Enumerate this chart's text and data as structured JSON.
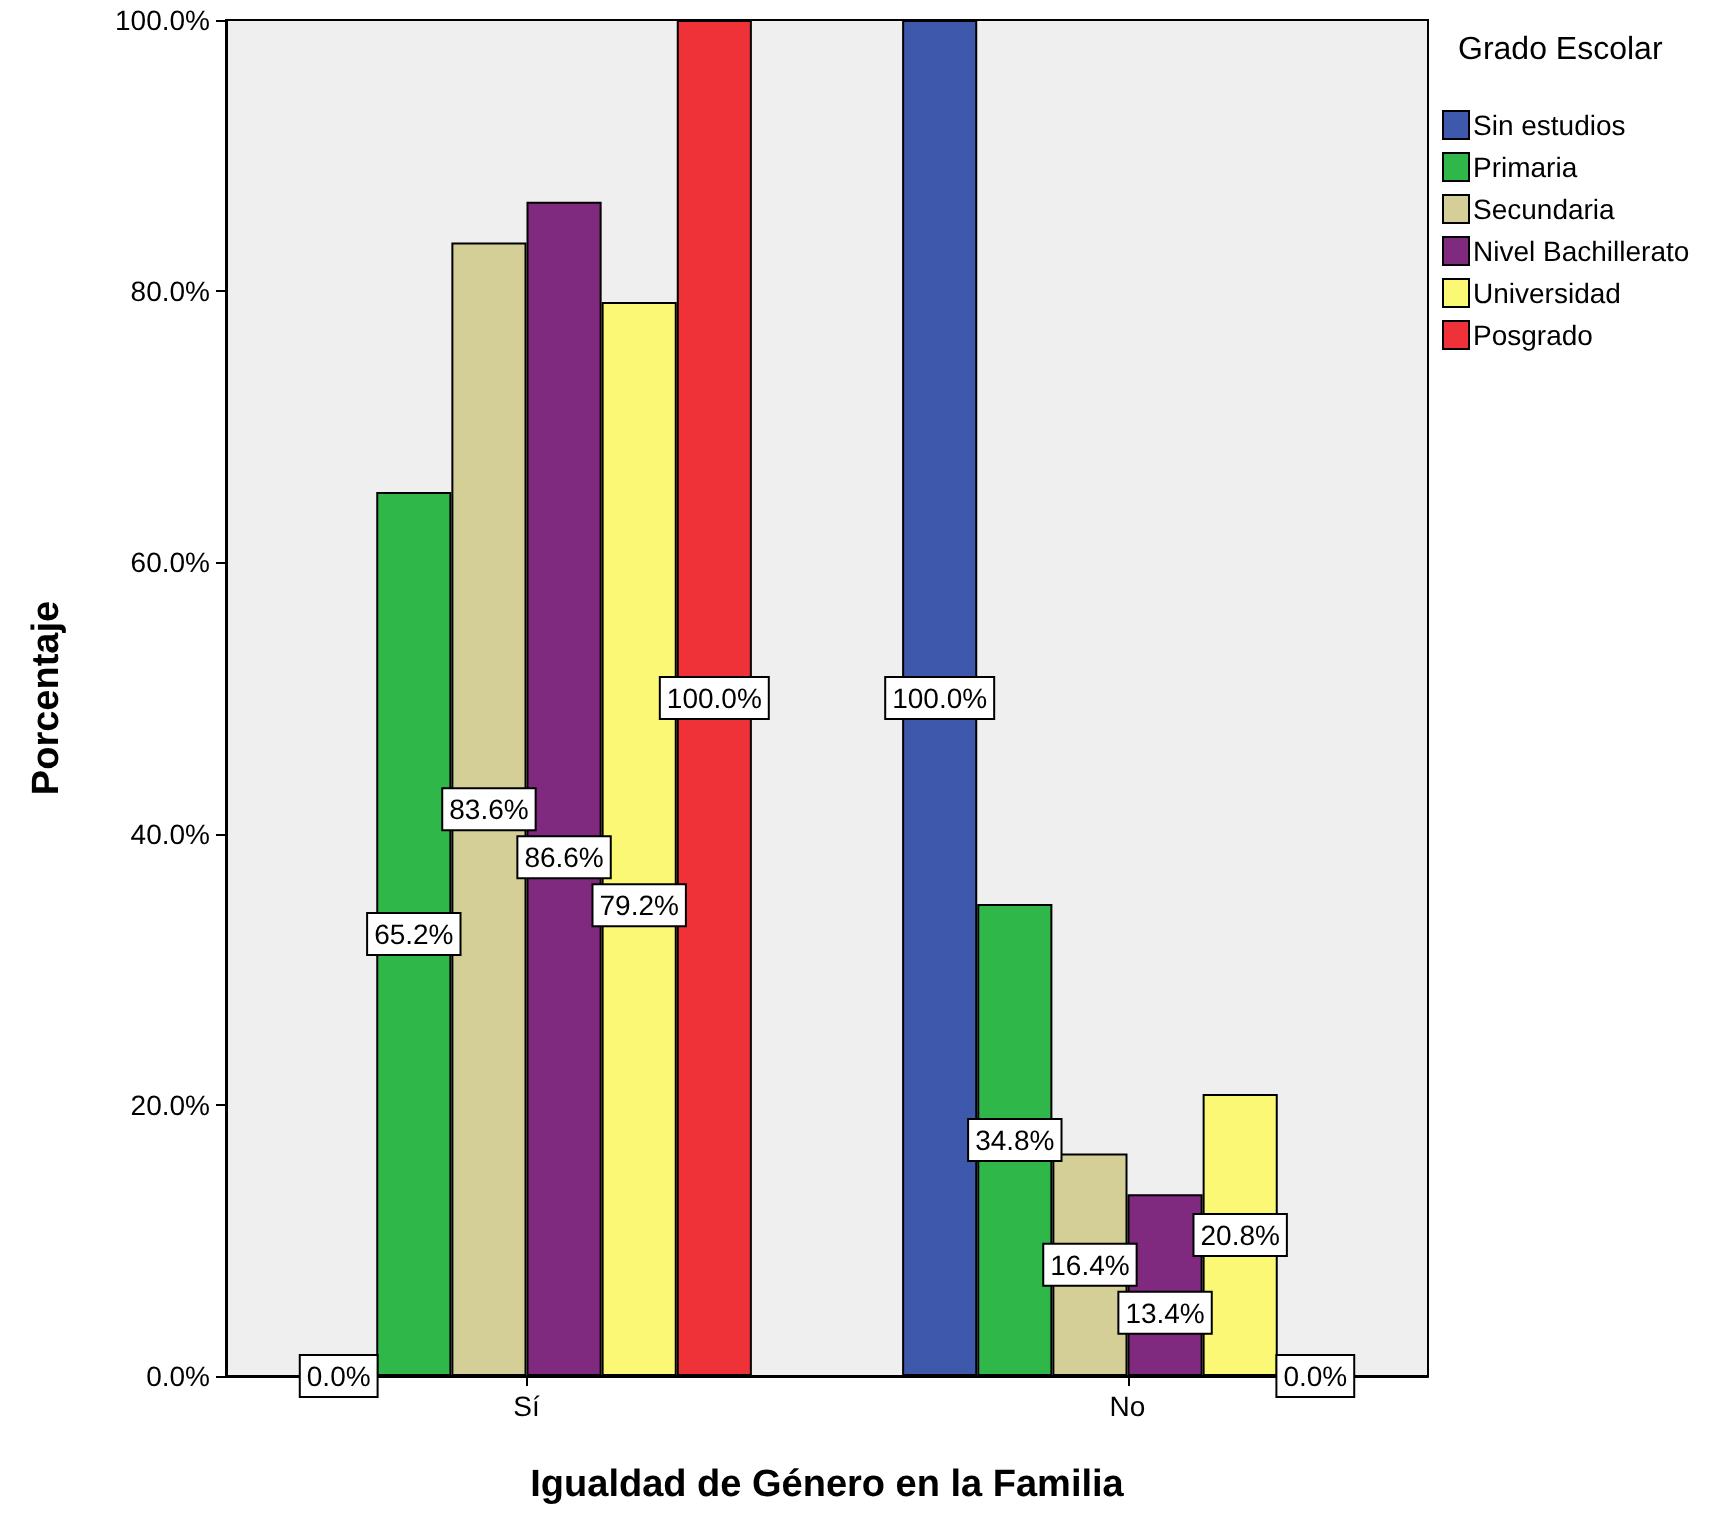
{
  "chart_data": {
    "type": "bar",
    "xlabel": "Igualdad de Género en la Familia",
    "ylabel": "Porcentaje",
    "legend_title": "Grado Escolar",
    "legend": "right",
    "categories": [
      "Sí",
      "No"
    ],
    "series": [
      {
        "name": "Sin estudios",
        "color": "#3e58ac",
        "values": [
          0.0,
          100.0
        ],
        "value_labels": [
          "0.0%",
          "100.0%"
        ]
      },
      {
        "name": "Primaria",
        "color": "#2fb74a",
        "values": [
          65.2,
          34.8
        ],
        "value_labels": [
          "65.2%",
          "34.8%"
        ]
      },
      {
        "name": "Secundaria",
        "color": "#d4cf96",
        "values": [
          83.6,
          16.4
        ],
        "value_labels": [
          "83.6%",
          "16.4%"
        ]
      },
      {
        "name": "Nivel Bachillerato",
        "color": "#7f2a7f",
        "values": [
          86.6,
          13.4
        ],
        "value_labels": [
          "86.6%",
          "13.4%"
        ]
      },
      {
        "name": "Universidad",
        "color": "#fbf875",
        "values": [
          79.2,
          20.8
        ],
        "value_labels": [
          "79.2%",
          "20.8%"
        ]
      },
      {
        "name": "Posgrado",
        "color": "#ee3238",
        "values": [
          100.0,
          0.0
        ],
        "value_labels": [
          "100.0%",
          "0.0%"
        ]
      }
    ],
    "ylim": [
      0,
      100
    ],
    "yticks": [
      {
        "value": 0,
        "label": "0.0%"
      },
      {
        "value": 20,
        "label": "20.0%"
      },
      {
        "value": 40,
        "label": "40.0%"
      },
      {
        "value": 60,
        "label": "60.0%"
      },
      {
        "value": 80,
        "label": "80.0%"
      },
      {
        "value": 100,
        "label": "100.0%"
      }
    ],
    "grid": false
  }
}
